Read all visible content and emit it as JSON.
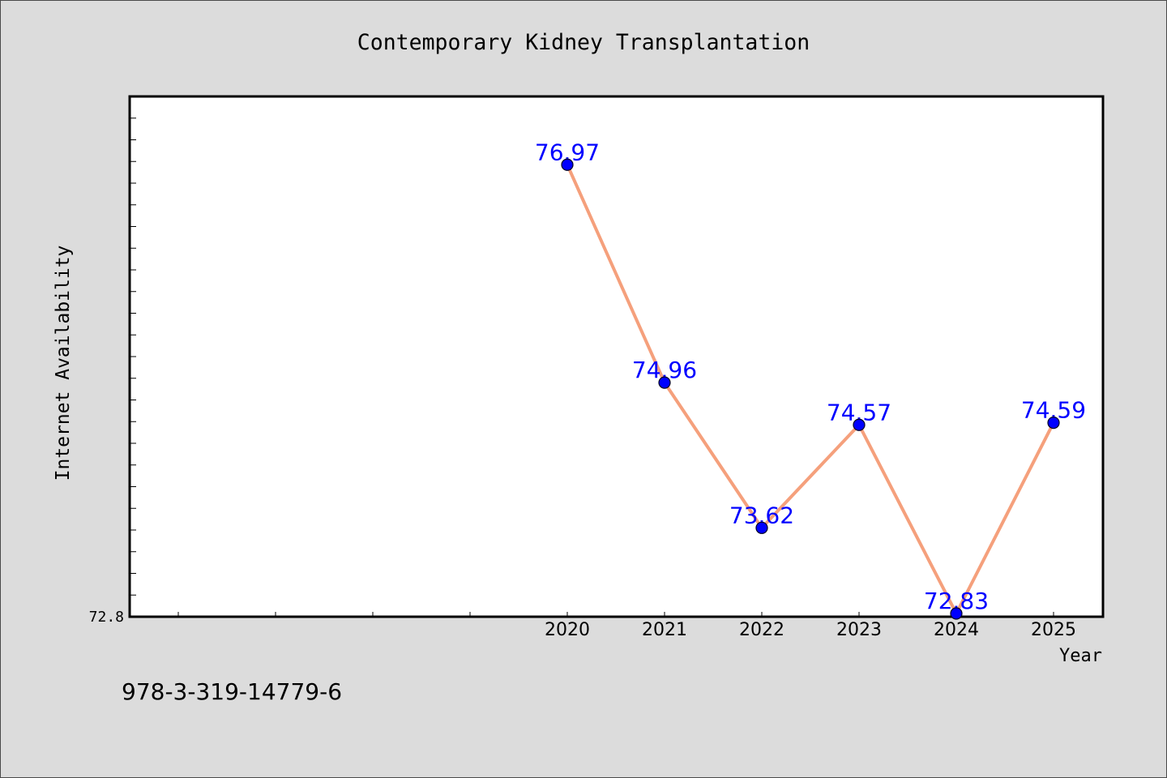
{
  "chart_data": {
    "type": "line",
    "title": "Contemporary Kidney Transplantation",
    "xlabel": "Year",
    "ylabel": "Internet Availability",
    "x": [
      2020,
      2021,
      2022,
      2023,
      2024,
      2025
    ],
    "series": [
      {
        "values": [
          76.97,
          74.96,
          73.62,
          74.57,
          72.83,
          74.59
        ]
      }
    ],
    "xlim": [
      2015.5,
      2025.5
    ],
    "ylim": [
      72.8,
      77.6
    ],
    "x_tick_labels": [
      "2020",
      "2021",
      "2022",
      "2023",
      "2024",
      "2025"
    ],
    "x_minor_ticks": [
      2016,
      2017,
      2018,
      2019
    ],
    "y_tick_labels": [
      "72.8"
    ],
    "y_tick_step": 0.2,
    "grid": false,
    "colors": {
      "background": "#dcdcdc",
      "plot_background": "#ffffff",
      "line": "#f5a07c",
      "marker": "#0000ff",
      "data_label": "#0000ff"
    }
  },
  "footer": {
    "text": "978-3-319-14779-6"
  }
}
